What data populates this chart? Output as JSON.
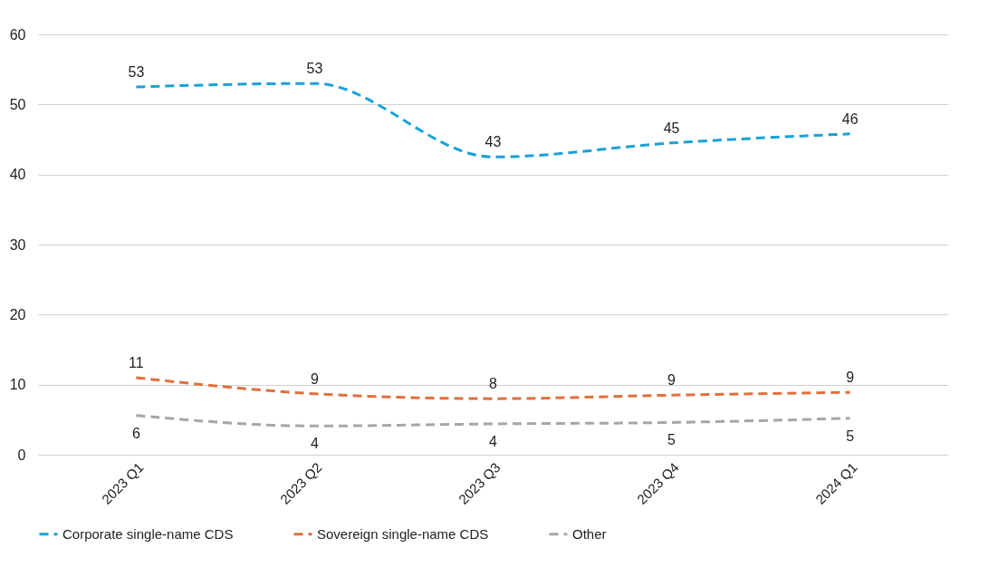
{
  "chart_data": {
    "type": "line",
    "categories": [
      "2023 Q1",
      "2023 Q2",
      "2023 Q3",
      "2023 Q4",
      "2024 Q1"
    ],
    "ylim": [
      0,
      60
    ],
    "yticks": [
      0,
      10,
      20,
      30,
      40,
      50,
      60
    ],
    "grid": "y",
    "legend": "bottom",
    "line_style": "dashed",
    "marker": "none",
    "series": [
      {
        "name": "Corporate single-name CDS",
        "color": "#1ba1d6",
        "values": [
          52.5,
          53,
          42.5,
          44.5,
          45.8
        ],
        "value_labels": [
          "53",
          "53",
          "43",
          "45",
          "46"
        ]
      },
      {
        "name": "Sovereign single-name CDS",
        "color": "#e0703c",
        "values": [
          11,
          8.7,
          8,
          8.5,
          8.9
        ],
        "value_labels": [
          "11",
          "9",
          "8",
          "9",
          "9"
        ]
      },
      {
        "name": "Other",
        "color": "#a6a6a6",
        "values": [
          5.6,
          4.1,
          4.4,
          4.6,
          5.2
        ],
        "value_labels": [
          "6",
          "4",
          "4",
          "5",
          "5"
        ]
      }
    ]
  }
}
